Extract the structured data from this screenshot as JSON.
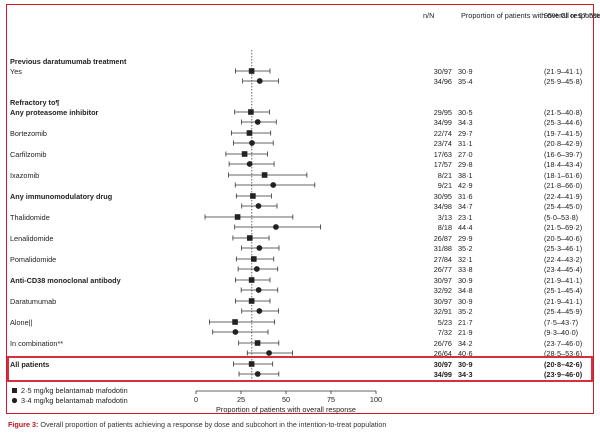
{
  "headers": {
    "nN": "n/N",
    "proportion": "Proportion of patients with overall response (%)",
    "ci": "95% CI or 97·5% CI*"
  },
  "caption": {
    "label": "Figure 3:",
    "text": "Overall proportion of patients achieving a response by dose and subcohort in the intention-to-treat population"
  },
  "legend": [
    {
      "label": "2·5 mg/kg belantamab mafodotin",
      "marker": "square"
    },
    {
      "label": "3·4 mg/kg belantamab mafodotin",
      "marker": "circle"
    }
  ],
  "colors": {
    "highlight": "#d3182a",
    "text": "#222222",
    "marker": "#222222"
  },
  "chart_data": {
    "type": "forest",
    "xlabel": "Proportion of patients with  overall response",
    "xlim": [
      0,
      100
    ],
    "xticks": [
      "0",
      "25",
      "50",
      "75",
      "100"
    ],
    "reference_line": 31,
    "rows": [
      {
        "kind": "header",
        "label": "Previous daratumumab treatment"
      },
      {
        "kind": "data",
        "label": "Yes",
        "marker": "square",
        "nN": "30/97",
        "value": 30.9,
        "ci_text": "(21·9–41·1)",
        "low": 21.9,
        "high": 41.1
      },
      {
        "kind": "data",
        "label": "",
        "marker": "circle",
        "nN": "34/96",
        "value": 35.4,
        "ci_text": "(25·9–45·8)",
        "low": 25.9,
        "high": 45.8
      },
      {
        "kind": "header",
        "label": "Refractory to¶"
      },
      {
        "kind": "data",
        "label": "Any proteasome inhibitor",
        "bold": true,
        "marker": "square",
        "nN": "29/95",
        "value": 30.5,
        "ci_text": "(21·5–40·8)",
        "low": 21.5,
        "high": 40.8
      },
      {
        "kind": "data",
        "label": "",
        "marker": "circle",
        "nN": "34/99",
        "value": 34.3,
        "ci_text": "(25·3–44·6)",
        "low": 25.3,
        "high": 44.6
      },
      {
        "kind": "data",
        "label": "Bortezomib",
        "marker": "square",
        "nN": "22/74",
        "value": 29.7,
        "ci_text": "(19·7–41·5)",
        "low": 19.7,
        "high": 41.5
      },
      {
        "kind": "data",
        "label": "",
        "marker": "circle",
        "nN": "23/74",
        "value": 31.1,
        "ci_text": "(20·8–42·9)",
        "low": 20.8,
        "high": 42.9
      },
      {
        "kind": "data",
        "label": "Carfilzomib",
        "marker": "square",
        "nN": "17/63",
        "value": 27.0,
        "ci_text": "(16·6–39·7)",
        "low": 16.6,
        "high": 39.7
      },
      {
        "kind": "data",
        "label": "",
        "marker": "circle",
        "nN": "17/57",
        "value": 29.8,
        "ci_text": "(18·4–43·4)",
        "low": 18.4,
        "high": 43.4
      },
      {
        "kind": "data",
        "label": "Ixazomib",
        "marker": "square",
        "nN": "8/21",
        "value": 38.1,
        "ci_text": "(18·1–61·6)",
        "low": 18.1,
        "high": 61.6
      },
      {
        "kind": "data",
        "label": "",
        "marker": "circle",
        "nN": "9/21",
        "value": 42.9,
        "ci_text": "(21·8–66·0)",
        "low": 21.8,
        "high": 66.0
      },
      {
        "kind": "data",
        "label": "Any immunomodulatory drug",
        "bold": true,
        "marker": "square",
        "nN": "30/95",
        "value": 31.6,
        "ci_text": "(22·4–41·9)",
        "low": 22.4,
        "high": 41.9
      },
      {
        "kind": "data",
        "label": "",
        "marker": "circle",
        "nN": "34/98",
        "value": 34.7,
        "ci_text": "(25·4–45·0)",
        "low": 25.4,
        "high": 45.0
      },
      {
        "kind": "data",
        "label": "Thalidomide",
        "marker": "square",
        "nN": "3/13",
        "value": 23.1,
        "ci_text": "(5·0–53·8)",
        "low": 5.0,
        "high": 53.8
      },
      {
        "kind": "data",
        "label": "",
        "marker": "circle",
        "nN": "8/18",
        "value": 44.4,
        "ci_text": "(21·5–69·2)",
        "low": 21.5,
        "high": 69.2
      },
      {
        "kind": "data",
        "label": "Lenalidomide",
        "marker": "square",
        "nN": "26/87",
        "value": 29.9,
        "ci_text": "(20·5–40·6)",
        "low": 20.5,
        "high": 40.6
      },
      {
        "kind": "data",
        "label": "",
        "marker": "circle",
        "nN": "31/88",
        "value": 35.2,
        "ci_text": "(25·3–46·1)",
        "low": 25.3,
        "high": 46.1
      },
      {
        "kind": "data",
        "label": "Pomalidomide",
        "marker": "square",
        "nN": "27/84",
        "value": 32.1,
        "ci_text": "(22·4–43·2)",
        "low": 22.4,
        "high": 43.2
      },
      {
        "kind": "data",
        "label": "",
        "marker": "circle",
        "nN": "26/77",
        "value": 33.8,
        "ci_text": "(23·4–45·4)",
        "low": 23.4,
        "high": 45.4
      },
      {
        "kind": "data",
        "label": "Anti-CD38 monoclonal antibody",
        "bold": true,
        "marker": "square",
        "nN": "30/97",
        "value": 30.9,
        "ci_text": "(21·9–41·1)",
        "low": 21.9,
        "high": 41.1
      },
      {
        "kind": "data",
        "label": "",
        "marker": "circle",
        "nN": "32/92",
        "value": 34.8,
        "ci_text": "(25·1–45·4)",
        "low": 25.1,
        "high": 45.4
      },
      {
        "kind": "data",
        "label": "Daratumumab",
        "marker": "square",
        "nN": "30/97",
        "value": 30.9,
        "ci_text": "(21·9–41·1)",
        "low": 21.9,
        "high": 41.1
      },
      {
        "kind": "data",
        "label": "",
        "marker": "circle",
        "nN": "32/91",
        "value": 35.2,
        "ci_text": "(25·4–45·9)",
        "low": 25.4,
        "high": 45.9
      },
      {
        "kind": "data",
        "label": "Alone||",
        "marker": "square",
        "nN": "5/23",
        "value": 21.7,
        "ci_text": "(7·5–43·7)",
        "low": 7.5,
        "high": 43.7
      },
      {
        "kind": "data",
        "label": "",
        "marker": "circle",
        "nN": "7/32",
        "value": 21.9,
        "ci_text": "(9·3–40·0)",
        "low": 9.3,
        "high": 40.0
      },
      {
        "kind": "data",
        "label": "In combination**",
        "marker": "square",
        "nN": "26/76",
        "value": 34.2,
        "ci_text": "(23·7–46·0)",
        "low": 23.7,
        "high": 46.0
      },
      {
        "kind": "data",
        "label": "",
        "marker": "circle",
        "nN": "26/64",
        "value": 40.6,
        "ci_text": "(28·5–53·6)",
        "low": 28.5,
        "high": 53.6
      },
      {
        "kind": "data",
        "label": "All patients",
        "bold": true,
        "marker": "square",
        "nN": "30/97",
        "value": 30.9,
        "ci_text": "(20·8–42·6)",
        "low": 20.8,
        "high": 42.6,
        "highlight": true
      },
      {
        "kind": "data",
        "label": "",
        "marker": "circle",
        "nN": "34/99",
        "value": 34.3,
        "ci_text": "(23·9–46·0)",
        "low": 23.9,
        "high": 46.0,
        "highlight": true
      }
    ]
  }
}
